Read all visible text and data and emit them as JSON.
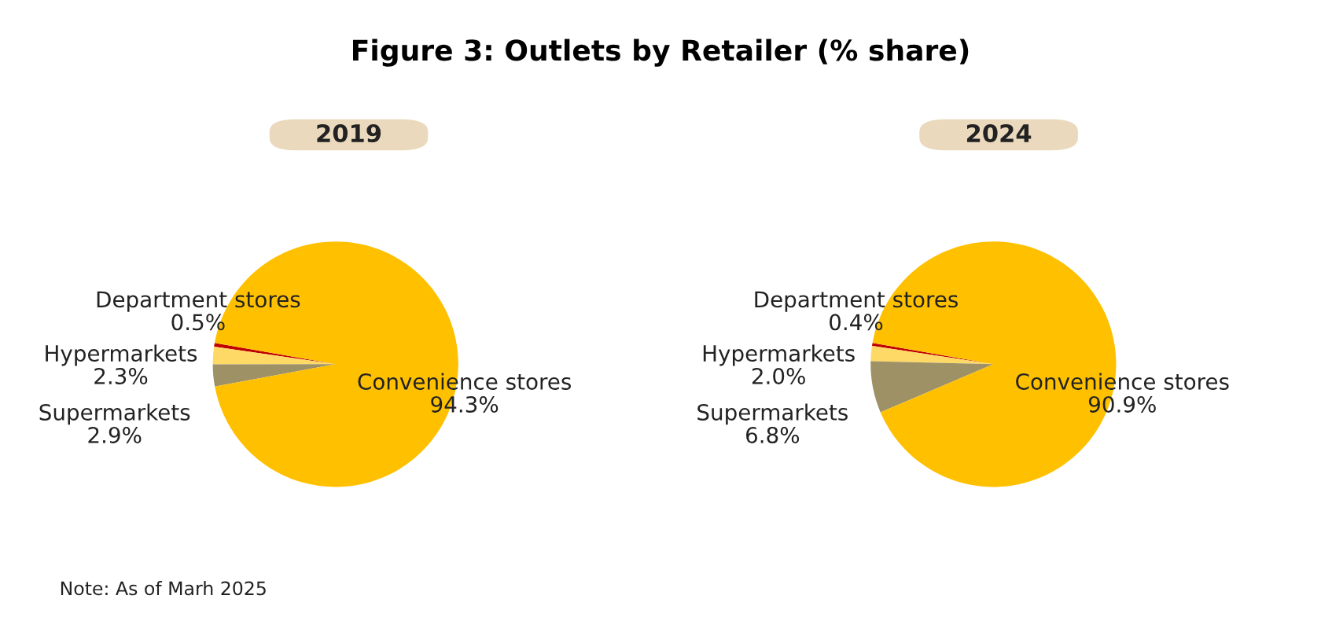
{
  "chart_data": [
    {
      "type": "pie",
      "title": "Figure 3: Outlets by Retailer (% share)",
      "subtitle": "2019",
      "categories": [
        "Department stores",
        "Hypermarkets",
        "Supermarkets",
        "Convenience stores"
      ],
      "values": [
        0.5,
        2.3,
        2.9,
        94.3
      ],
      "value_labels": [
        "0.5%",
        "2.3%",
        "2.9%",
        "94.3%"
      ],
      "colors": [
        "#c00000",
        "#ffd966",
        "#9e9166",
        "#ffc000"
      ],
      "annotations": [
        "Note: As of Marh 2025"
      ]
    },
    {
      "type": "pie",
      "subtitle": "2024",
      "categories": [
        "Department stores",
        "Hypermarkets",
        "Supermarkets",
        "Convenience stores"
      ],
      "values": [
        0.4,
        2.0,
        6.8,
        90.9
      ],
      "value_labels": [
        "0.4%",
        "2.0%",
        "6.8%",
        "90.9%"
      ],
      "colors": [
        "#c00000",
        "#ffd966",
        "#9e9166",
        "#ffc000"
      ]
    }
  ]
}
